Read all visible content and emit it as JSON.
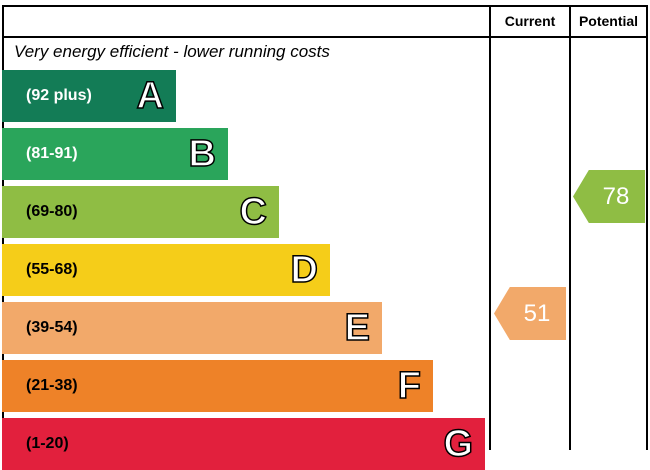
{
  "chart_data": {
    "type": "bar",
    "header": {
      "current": "Current",
      "potential": "Potential"
    },
    "top_caption": "Very energy efficient - lower running costs",
    "bands": [
      {
        "letter": "A",
        "range": "(92 plus)",
        "color": "#137c56",
        "text_color": "#ffffff"
      },
      {
        "letter": "B",
        "range": "(81-91)",
        "color": "#2aa55b",
        "text_color": "#ffffff"
      },
      {
        "letter": "C",
        "range": "(69-80)",
        "color": "#8fbd44",
        "text_color": "#000000"
      },
      {
        "letter": "D",
        "range": "(55-68)",
        "color": "#f5cd19",
        "text_color": "#000000"
      },
      {
        "letter": "E",
        "range": "(39-54)",
        "color": "#f2a96a",
        "text_color": "#000000"
      },
      {
        "letter": "F",
        "range": "(21-38)",
        "color": "#ee8228",
        "text_color": "#000000"
      },
      {
        "letter": "G",
        "range": "(1-20)",
        "color": "#e2203d",
        "text_color": "#000000"
      }
    ],
    "current": {
      "value": "51",
      "band": "E",
      "color": "#f2a96a"
    },
    "potential": {
      "value": "78",
      "band": "C",
      "color": "#8fbd44"
    }
  }
}
